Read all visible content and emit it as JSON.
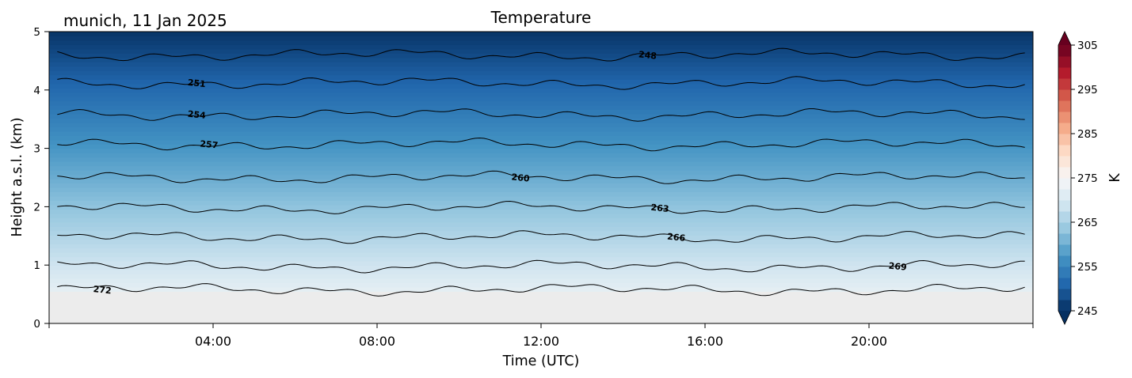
{
  "header": {
    "location_date": "munich, 11 Jan 2025",
    "title": "Temperature"
  },
  "chart_data": {
    "type": "heatmap",
    "title": "Temperature",
    "xlabel": "Time (UTC)",
    "ylabel": "Height a.s.l. (km)",
    "xlim": [
      0,
      24
    ],
    "ylim": [
      0,
      5
    ],
    "x_ticks": [
      {
        "value": 4,
        "label": "04:00"
      },
      {
        "value": 8,
        "label": "08:00"
      },
      {
        "value": 12,
        "label": "12:00"
      },
      {
        "value": 16,
        "label": "16:00"
      },
      {
        "value": 20,
        "label": "20:00"
      }
    ],
    "y_ticks": [
      {
        "value": 0,
        "label": "0"
      },
      {
        "value": 1,
        "label": "1"
      },
      {
        "value": 2,
        "label": "2"
      },
      {
        "value": 3,
        "label": "3"
      },
      {
        "value": 4,
        "label": "4"
      },
      {
        "value": 5,
        "label": "5"
      }
    ],
    "data_bottom_km": 0.55,
    "colorbar": {
      "label": "K",
      "vmin": 245,
      "vmax": 305,
      "ticks": [
        {
          "value": 245,
          "label": "245"
        },
        {
          "value": 255,
          "label": "255"
        },
        {
          "value": 265,
          "label": "265"
        },
        {
          "value": 275,
          "label": "275"
        },
        {
          "value": 285,
          "label": "285"
        },
        {
          "value": 295,
          "label": "295"
        },
        {
          "value": 305,
          "label": "305"
        }
      ],
      "colormap": "RdBu_r",
      "no_data_color": "#ececec"
    },
    "contours": [
      {
        "level": 272,
        "height_km": 0.58,
        "label": "272",
        "label_time": 1.3
      },
      {
        "level": 269,
        "height_km": 0.98,
        "label": "269",
        "label_time": 20.7
      },
      {
        "level": 266,
        "height_km": 1.48,
        "label": "266",
        "label_time": 15.3
      },
      {
        "level": 263,
        "height_km": 1.98,
        "label": "263",
        "label_time": 14.9
      },
      {
        "level": 260,
        "height_km": 2.5,
        "label": "260",
        "label_time": 11.5
      },
      {
        "level": 257,
        "height_km": 3.07,
        "label": "257",
        "label_time": 3.9
      },
      {
        "level": 254,
        "height_km": 3.58,
        "label": "254",
        "label_time": 3.6
      },
      {
        "level": 251,
        "height_km": 4.12,
        "label": "251",
        "label_time": 3.6
      },
      {
        "level": 248,
        "height_km": 4.6,
        "label": "248",
        "label_time": 14.6
      }
    ]
  }
}
